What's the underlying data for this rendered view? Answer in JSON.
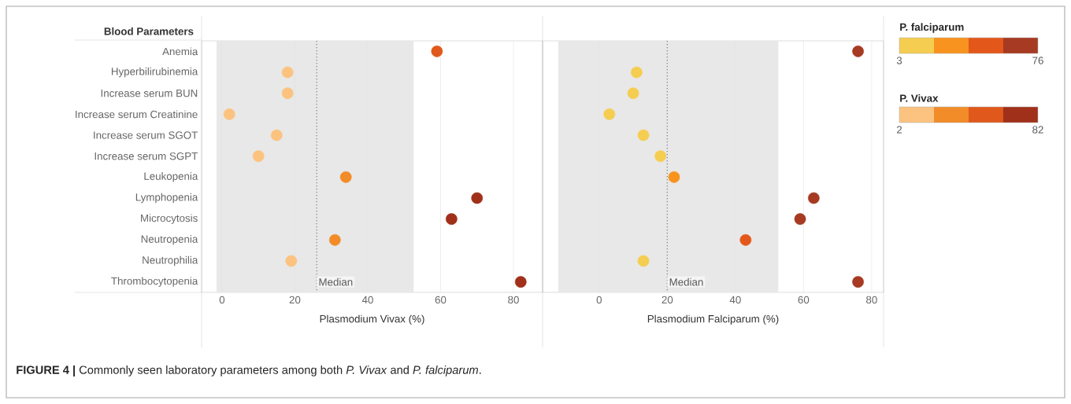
{
  "chart_data": [
    {
      "type": "scatter",
      "orientation": "horizontal",
      "ylabel": "Blood Parameters",
      "xlabel": "Plasmodium Vivax (%)",
      "categories": [
        "Anemia",
        "Hyperbilirubinemia",
        "Increase serum BUN",
        "Increase serum Creatinine",
        "Increase serum SGOT",
        "Increase serum SGPT",
        "Leukopenia",
        "Lymphopenia",
        "Microcytosis",
        "Neutropenia",
        "Neutrophilia",
        "Thrombocytopenia"
      ],
      "values": [
        59,
        18,
        18,
        2,
        15,
        10,
        34,
        70,
        63,
        31,
        19,
        82
      ],
      "colors": [
        "#e0581c",
        "#fcc27f",
        "#fcc27f",
        "#fcc27f",
        "#fcc27f",
        "#fcc27f",
        "#f28c28",
        "#a0301a",
        "#a0301a",
        "#f28c28",
        "#fcc27f",
        "#a0301a"
      ],
      "clabel": "P. Vivax",
      "clim": [
        2,
        82
      ],
      "cticks": [
        2,
        82
      ],
      "xlim": [
        -5.6,
        88
      ],
      "xticks": [
        0,
        20,
        40,
        60,
        80
      ],
      "grid": "x",
      "bands": [
        {
          "axis": "x",
          "from": -1.5,
          "to": 52.6,
          "color": "#e8e8e8"
        }
      ],
      "ref_lines": [
        {
          "axis": "x",
          "value": 26,
          "label": "Median",
          "line_style": "dotted",
          "color": "#888888"
        }
      ],
      "annotations": [
        "**FIGURE 4 |** Commonly seen laboratory parameters among both *P. Vivax* and *P. falciparum*."
      ]
    },
    {
      "type": "scatter",
      "orientation": "horizontal",
      "xlabel": "Plasmodium Falciparum (%)",
      "tick_labels": "x",
      "categories": [
        null,
        null,
        null,
        null,
        null,
        null,
        null,
        null,
        null,
        null,
        null,
        null
      ],
      "values": [
        76,
        11,
        10,
        3,
        13,
        18,
        22,
        63,
        59,
        43,
        13,
        76
      ],
      "colors": [
        "#a63a22",
        "#f5cd50",
        "#f5cd50",
        "#f5cd50",
        "#f5cd50",
        "#f5cd50",
        "#f7931e",
        "#a63a22",
        "#a63a22",
        "#e4571b",
        "#f5cd50",
        "#a63a22"
      ],
      "clabel": "P. falciparum",
      "clim": [
        3,
        76
      ],
      "cticks": [
        3,
        76
      ],
      "xlim": [
        -16.6,
        83.5
      ],
      "xticks": [
        0,
        20,
        40,
        60,
        80
      ],
      "grid": "x",
      "bands": [
        {
          "axis": "x",
          "from": -12,
          "to": 52.6,
          "color": "#e8e8e8"
        }
      ],
      "ref_lines": [
        {
          "axis": "x",
          "value": 20,
          "label": "Median",
          "line_style": "dotted",
          "color": "#888888"
        }
      ]
    }
  ]
}
